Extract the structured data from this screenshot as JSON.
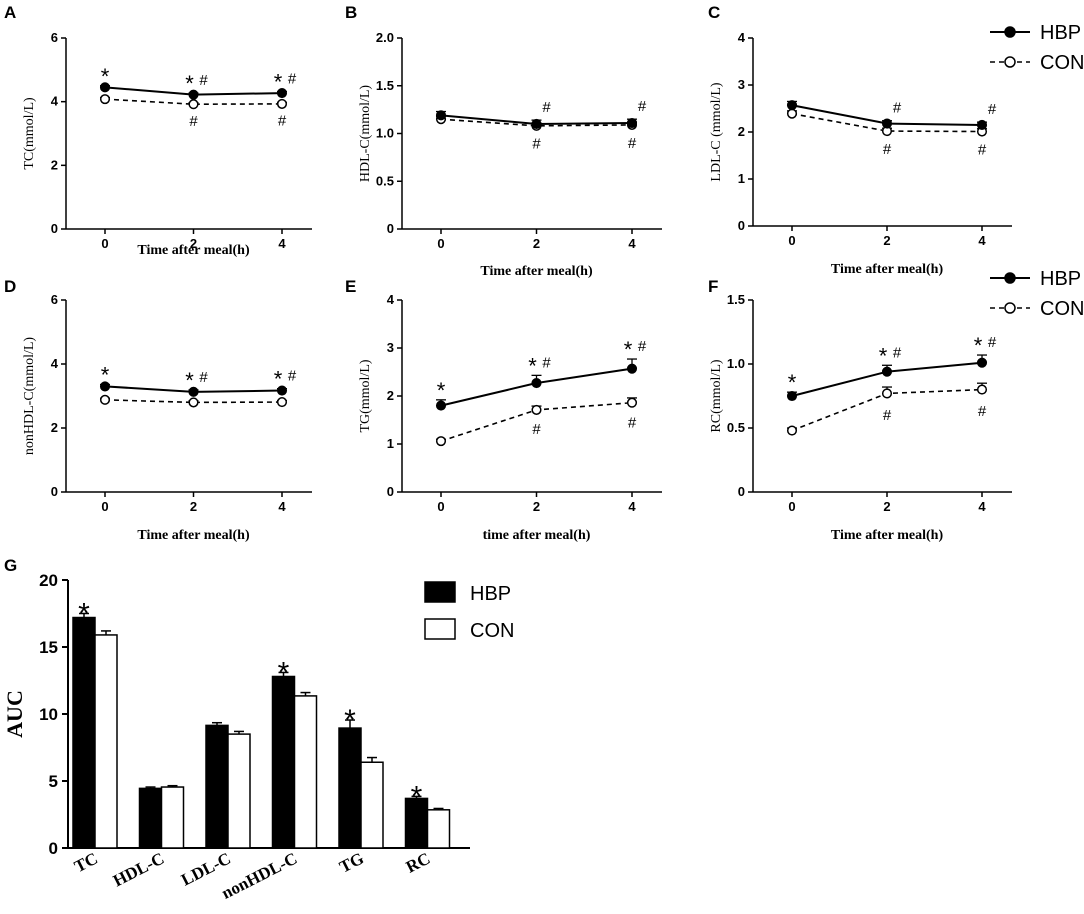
{
  "colors": {
    "hbp": "#000000",
    "con": "#ffffff",
    "axis": "#000000"
  },
  "legend": {
    "hbp": "HBP",
    "con": "CON"
  },
  "chart_data": [
    {
      "panel": "A",
      "type": "line",
      "ylabel": "TC(mmol/L)",
      "xlabel": "Time after meal(h)",
      "x": [
        0,
        2,
        4
      ],
      "ylim": [
        0,
        6
      ],
      "yticks": [
        "0",
        "2",
        "4",
        "6"
      ],
      "series": [
        {
          "name": "HBP",
          "values": [
            4.45,
            4.22,
            4.27
          ],
          "err": [
            0.05,
            0.05,
            0.05
          ],
          "marks": [
            "*",
            "*#",
            "*#"
          ]
        },
        {
          "name": "CON",
          "values": [
            4.08,
            3.92,
            3.93
          ],
          "err": [
            0.05,
            0.05,
            0.05
          ],
          "marks": [
            "",
            "#",
            "#"
          ]
        }
      ]
    },
    {
      "panel": "B",
      "type": "line",
      "ylabel": "HDL-C(mmol/L)",
      "xlabel": "Time after meal(h)",
      "x": [
        0,
        2,
        4
      ],
      "ylim": [
        0,
        2.0
      ],
      "yticks": [
        "0",
        "0.5",
        "1.0",
        "1.5",
        "2.0"
      ],
      "series": [
        {
          "name": "HBP",
          "values": [
            1.19,
            1.1,
            1.11
          ],
          "err": [
            0.04,
            0.04,
            0.04
          ],
          "marks": [
            "",
            "#",
            "#"
          ]
        },
        {
          "name": "CON",
          "values": [
            1.15,
            1.08,
            1.09
          ],
          "err": [
            0.03,
            0.03,
            0.03
          ],
          "marks": [
            "",
            "#",
            "#"
          ]
        }
      ]
    },
    {
      "panel": "C",
      "type": "line",
      "ylabel": "LDL-C (mmol/L)",
      "xlabel": "Time after meal(h)",
      "x": [
        0,
        2,
        4
      ],
      "ylim": [
        0,
        4
      ],
      "yticks": [
        "0",
        "1",
        "2",
        "3",
        "4"
      ],
      "series": [
        {
          "name": "HBP",
          "values": [
            2.57,
            2.18,
            2.15
          ],
          "err": [
            0.08,
            0.06,
            0.06
          ],
          "marks": [
            "",
            "#",
            "#"
          ]
        },
        {
          "name": "CON",
          "values": [
            2.39,
            2.02,
            2.01
          ],
          "err": [
            0.06,
            0.06,
            0.06
          ],
          "marks": [
            "",
            "#",
            "#"
          ]
        }
      ]
    },
    {
      "panel": "D",
      "type": "line",
      "ylabel": "nonHDL-C(mmol/L)",
      "xlabel": "Time after meal(h)",
      "x": [
        0,
        2,
        4
      ],
      "ylim": [
        0,
        6
      ],
      "yticks": [
        "0",
        "2",
        "4",
        "6"
      ],
      "series": [
        {
          "name": "HBP",
          "values": [
            3.3,
            3.13,
            3.17
          ],
          "err": [
            0.06,
            0.06,
            0.06
          ],
          "marks": [
            "*",
            "*#",
            "*#"
          ]
        },
        {
          "name": "CON",
          "values": [
            2.88,
            2.8,
            2.81
          ],
          "err": [
            0.05,
            0.05,
            0.05
          ],
          "marks": [
            "",
            "",
            ""
          ]
        }
      ]
    },
    {
      "panel": "E",
      "type": "line",
      "ylabel": "TG(mmol/L)",
      "xlabel": "time after meal(h)",
      "x": [
        0,
        2,
        4
      ],
      "ylim": [
        0,
        4
      ],
      "yticks": [
        "0",
        "1",
        "2",
        "3",
        "4"
      ],
      "series": [
        {
          "name": "HBP",
          "values": [
            1.8,
            2.27,
            2.57
          ],
          "err": [
            0.12,
            0.16,
            0.2
          ],
          "marks": [
            "*",
            "*#",
            "*#"
          ]
        },
        {
          "name": "CON",
          "values": [
            1.06,
            1.71,
            1.86
          ],
          "err": [
            0.04,
            0.08,
            0.1
          ],
          "marks": [
            "",
            "#",
            "#"
          ]
        }
      ]
    },
    {
      "panel": "F",
      "type": "line",
      "ylabel": "RC(mmol/L)",
      "xlabel": "Time after meal(h)",
      "x": [
        0,
        2,
        4
      ],
      "ylim": [
        0,
        1.5
      ],
      "yticks": [
        "0",
        "0.5",
        "1.0",
        "1.5"
      ],
      "series": [
        {
          "name": "HBP",
          "values": [
            0.75,
            0.94,
            1.01
          ],
          "err": [
            0.03,
            0.05,
            0.06
          ],
          "marks": [
            "*",
            "*#",
            "*#"
          ]
        },
        {
          "name": "CON",
          "values": [
            0.48,
            0.77,
            0.8
          ],
          "err": [
            0.02,
            0.05,
            0.05
          ],
          "marks": [
            "",
            "#",
            "#"
          ]
        }
      ]
    },
    {
      "panel": "G",
      "type": "bar",
      "ylabel": "AUC",
      "xlabel": "",
      "categories": [
        "TC",
        "HDL-C",
        "LDL-C",
        "nonHDL-C",
        "TG",
        "RC"
      ],
      "ylim": [
        0,
        20
      ],
      "yticks": [
        "0",
        "5",
        "10",
        "15",
        "20"
      ],
      "series": [
        {
          "name": "HBP",
          "values": [
            17.2,
            4.45,
            9.15,
            12.8,
            8.95,
            3.7
          ],
          "err": [
            0.3,
            0.1,
            0.2,
            0.3,
            0.6,
            0.15
          ],
          "marks": [
            "*",
            "",
            "",
            "*",
            "*",
            "*"
          ]
        },
        {
          "name": "CON",
          "values": [
            15.9,
            4.55,
            8.5,
            11.35,
            6.4,
            2.85
          ],
          "err": [
            0.3,
            0.1,
            0.2,
            0.25,
            0.35,
            0.1
          ],
          "marks": [
            "",
            "",
            "",
            "",
            "",
            ""
          ]
        }
      ]
    }
  ]
}
